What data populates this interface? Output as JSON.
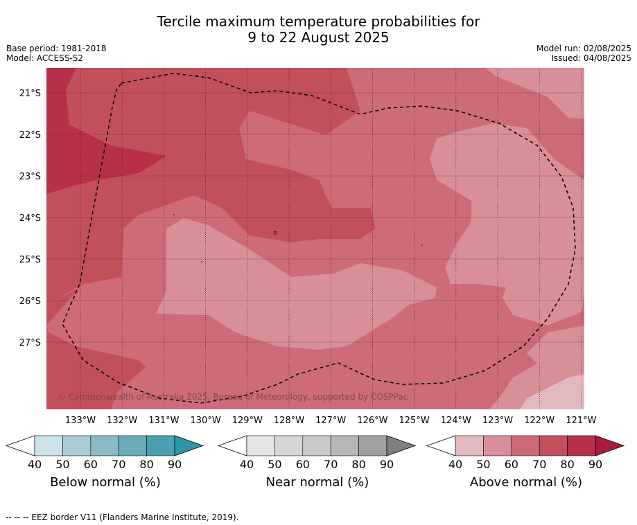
{
  "title_line1": "Tercile maximum temperature probabilities for",
  "title_line2": "9 to 22 August 2025",
  "base_period": "Base period: 1981-2018",
  "model": "Model: ACCESS-S2",
  "model_run": "Model run: 02/08/2025",
  "issued": "Issued: 04/08/2025",
  "copyright": "© Commonwealth of Australia 2025, Bureau of Meteorology, supported by COSPPac",
  "lat_labels": [
    "21°S",
    "22°S",
    "23°S",
    "24°S",
    "25°S",
    "26°S",
    "27°S"
  ],
  "lon_labels": [
    "133°W",
    "132°W",
    "131°W",
    "130°W",
    "129°W",
    "128°W",
    "127°W",
    "126°W",
    "125°W",
    "124°W",
    "123°W",
    "122°W",
    "121°W"
  ],
  "legend_note": "--  --  -- EEZ border V11 (Flanders Marine Institute, 2019).",
  "colorbars": [
    {
      "title": "Below normal (%)",
      "ticks": [
        "40",
        "50",
        "60",
        "70",
        "80",
        "90"
      ],
      "colors": [
        "#cce3e8",
        "#a9cdd3",
        "#8bbac4",
        "#6aabb8",
        "#4a9fb0",
        "#2f96aa"
      ]
    },
    {
      "title": "Near normal (%)",
      "ticks": [
        "40",
        "50",
        "60",
        "70",
        "80",
        "90"
      ],
      "colors": [
        "#e6e6e6",
        "#d6d6d6",
        "#c9c9c9",
        "#b6b6b6",
        "#a0a0a0",
        "#7f7f7f"
      ]
    },
    {
      "title": "Above normal (%)",
      "ticks": [
        "40",
        "50",
        "60",
        "70",
        "80",
        "90"
      ],
      "colors": [
        "#e2b9bf",
        "#d88f98",
        "#cd6b78",
        "#c24f5c",
        "#b72f48",
        "#a81c3a"
      ]
    }
  ],
  "map_colors": {
    "c50": "#d88f98",
    "c60": "#cd6b78",
    "c70": "#c24f5c",
    "c80": "#b72f48",
    "c40": "#e2b9bf"
  }
}
